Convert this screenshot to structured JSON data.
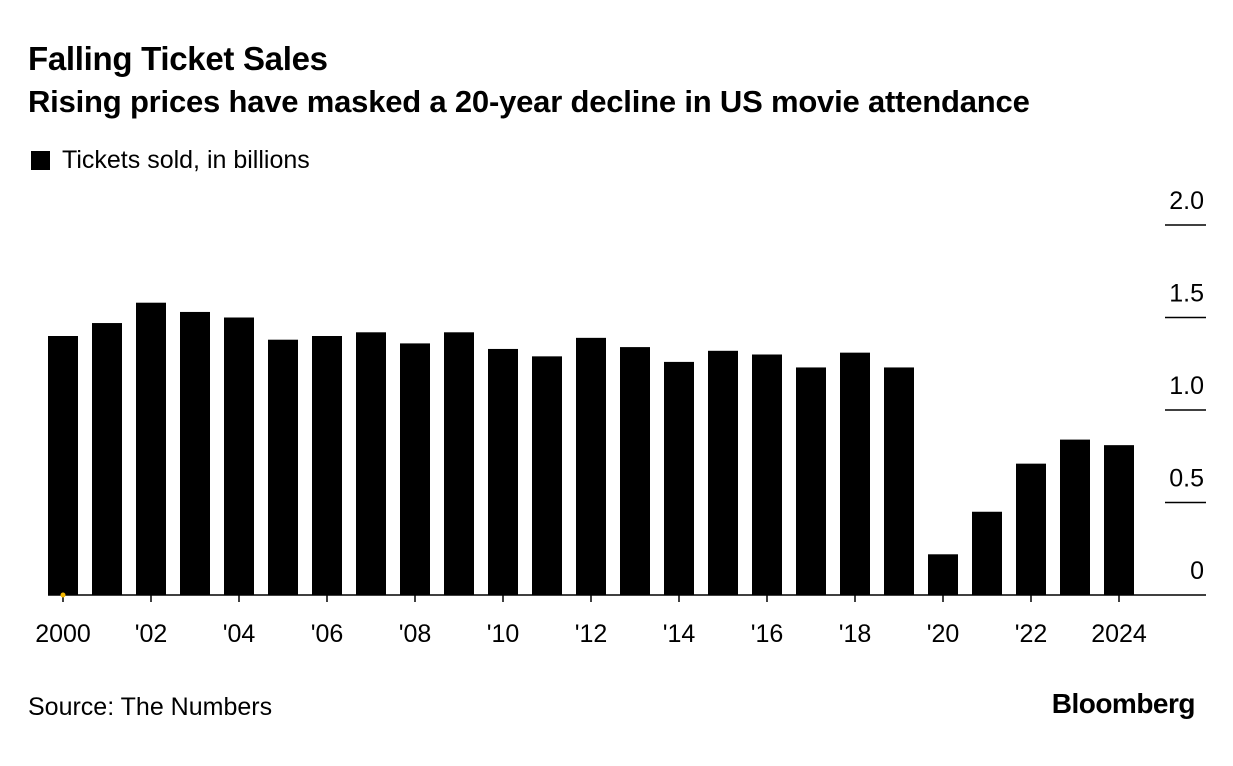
{
  "header": {
    "title": "Falling Ticket Sales",
    "subtitle": "Rising prices have masked a 20-year decline in US movie attendance"
  },
  "legend": {
    "label": "Tickets sold, in billions"
  },
  "footer": {
    "source": "Source: The Numbers",
    "brand": "Bloomberg"
  },
  "colors": {
    "bar": "#000000",
    "background": "#ffffff",
    "marker": "#f5b800"
  },
  "chart_data": {
    "type": "bar",
    "x": [
      2000,
      2001,
      2002,
      2003,
      2004,
      2005,
      2006,
      2007,
      2008,
      2009,
      2010,
      2011,
      2012,
      2013,
      2014,
      2015,
      2016,
      2017,
      2018,
      2019,
      2020,
      2021,
      2022,
      2023,
      2024
    ],
    "values": [
      1.4,
      1.47,
      1.58,
      1.53,
      1.5,
      1.38,
      1.4,
      1.42,
      1.36,
      1.42,
      1.33,
      1.29,
      1.39,
      1.34,
      1.26,
      1.32,
      1.3,
      1.23,
      1.31,
      1.23,
      0.22,
      0.45,
      0.71,
      0.84,
      0.81
    ],
    "x_tick_labels": [
      "2000",
      "'02",
      "'04",
      "'06",
      "'08",
      "'10",
      "'12",
      "'14",
      "'16",
      "'18",
      "'20",
      "'22",
      "2024"
    ],
    "y_ticks": [
      0,
      0.5,
      1.0,
      1.5,
      2.0
    ],
    "y_tick_labels": [
      "0",
      "0.5",
      "1.0",
      "1.5",
      "2.0"
    ],
    "ylim": [
      0,
      2.0
    ],
    "y_axis_side": "right",
    "series": [
      {
        "name": "Tickets sold, in billions",
        "values": [
          1.4,
          1.47,
          1.58,
          1.53,
          1.5,
          1.38,
          1.4,
          1.42,
          1.36,
          1.42,
          1.33,
          1.29,
          1.39,
          1.34,
          1.26,
          1.32,
          1.3,
          1.23,
          1.31,
          1.23,
          0.22,
          0.45,
          0.71,
          0.84,
          0.81
        ]
      }
    ],
    "title": "Falling Ticket Sales",
    "xlabel": "",
    "ylabel": "",
    "grid": false,
    "legend_position": "top-left"
  }
}
